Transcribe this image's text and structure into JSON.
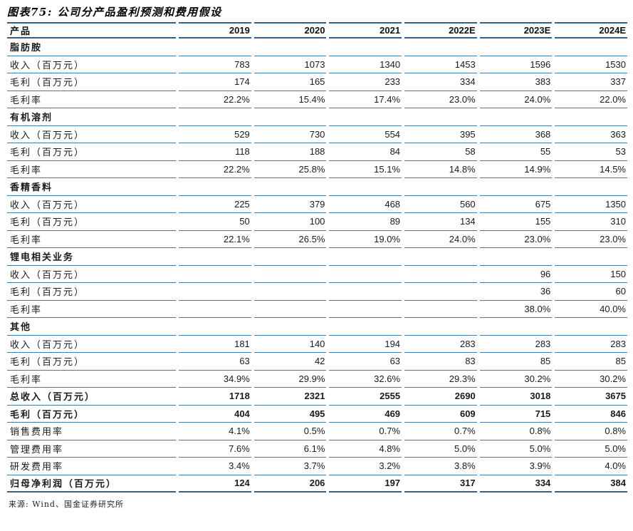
{
  "figure": {
    "title": "图表75: 公司分产品盈利预测和费用假设",
    "source": "来源: Wind、国金证券研究所"
  },
  "colors": {
    "rule_heavy": "#2e6187",
    "rule_light": "#4579a1",
    "text": "#1a1a1a"
  },
  "table": {
    "columns": [
      "产品",
      "2019",
      "2020",
      "2021",
      "2022E",
      "2023E",
      "2024E"
    ],
    "rows": [
      {
        "label": "脂肪胺",
        "style": "section",
        "values": [
          "",
          "",
          "",
          "",
          "",
          ""
        ]
      },
      {
        "label": "收入（百万元）",
        "style": "data",
        "values": [
          "783",
          "1073",
          "1340",
          "1453",
          "1596",
          "1530"
        ]
      },
      {
        "label": "毛利（百万元）",
        "style": "data",
        "values": [
          "174",
          "165",
          "233",
          "334",
          "383",
          "337"
        ]
      },
      {
        "label": "毛利率",
        "style": "data",
        "values": [
          "22.2%",
          "15.4%",
          "17.4%",
          "23.0%",
          "24.0%",
          "22.0%"
        ]
      },
      {
        "label": "有机溶剂",
        "style": "section",
        "values": [
          "",
          "",
          "",
          "",
          "",
          ""
        ]
      },
      {
        "label": "收入（百万元）",
        "style": "data",
        "values": [
          "529",
          "730",
          "554",
          "395",
          "368",
          "363"
        ]
      },
      {
        "label": "毛利（百万元）",
        "style": "data",
        "values": [
          "118",
          "188",
          "84",
          "58",
          "55",
          "53"
        ]
      },
      {
        "label": "毛利率",
        "style": "data",
        "values": [
          "22.2%",
          "25.8%",
          "15.1%",
          "14.8%",
          "14.9%",
          "14.5%"
        ]
      },
      {
        "label": "香精香料",
        "style": "section",
        "values": [
          "",
          "",
          "",
          "",
          "",
          ""
        ]
      },
      {
        "label": "收入（百万元）",
        "style": "data",
        "values": [
          "225",
          "379",
          "468",
          "560",
          "675",
          "1350"
        ]
      },
      {
        "label": "毛利（百万元）",
        "style": "data",
        "values": [
          "50",
          "100",
          "89",
          "134",
          "155",
          "310"
        ]
      },
      {
        "label": "毛利率",
        "style": "data",
        "values": [
          "22.1%",
          "26.5%",
          "19.0%",
          "24.0%",
          "23.0%",
          "23.0%"
        ]
      },
      {
        "label": "锂电相关业务",
        "style": "section",
        "values": [
          "",
          "",
          "",
          "",
          "",
          ""
        ]
      },
      {
        "label": "收入（百万元）",
        "style": "data",
        "values": [
          "",
          "",
          "",
          "",
          "96",
          "150"
        ]
      },
      {
        "label": "毛利（百万元）",
        "style": "data",
        "values": [
          "",
          "",
          "",
          "",
          "36",
          "60"
        ]
      },
      {
        "label": "毛利率",
        "style": "data",
        "values": [
          "",
          "",
          "",
          "",
          "38.0%",
          "40.0%"
        ]
      },
      {
        "label": "其他",
        "style": "section",
        "values": [
          "",
          "",
          "",
          "",
          "",
          ""
        ]
      },
      {
        "label": "收入（百万元）",
        "style": "data",
        "values": [
          "181",
          "140",
          "194",
          "283",
          "283",
          "283"
        ]
      },
      {
        "label": "毛利（百万元）",
        "style": "data",
        "values": [
          "63",
          "42",
          "63",
          "83",
          "85",
          "85"
        ]
      },
      {
        "label": "毛利率",
        "style": "data",
        "values": [
          "34.9%",
          "29.9%",
          "32.6%",
          "29.3%",
          "30.2%",
          "30.2%"
        ]
      },
      {
        "label": "总收入（百万元）",
        "style": "bold",
        "values": [
          "1718",
          "2321",
          "2555",
          "2690",
          "3018",
          "3675"
        ]
      },
      {
        "label": "毛利（百万元）",
        "style": "bold",
        "values": [
          "404",
          "495",
          "469",
          "609",
          "715",
          "846"
        ]
      },
      {
        "label": "销售费用率",
        "style": "data",
        "values": [
          "4.1%",
          "0.5%",
          "0.7%",
          "0.7%",
          "0.8%",
          "0.8%"
        ]
      },
      {
        "label": "管理费用率",
        "style": "data",
        "values": [
          "7.6%",
          "6.1%",
          "4.8%",
          "5.0%",
          "5.0%",
          "5.0%"
        ]
      },
      {
        "label": "研发费用率",
        "style": "data",
        "values": [
          "3.4%",
          "3.7%",
          "3.2%",
          "3.8%",
          "3.9%",
          "4.0%"
        ]
      },
      {
        "label": "归母净利润（百万元）",
        "style": "bold",
        "values": [
          "124",
          "206",
          "197",
          "317",
          "334",
          "384"
        ]
      }
    ]
  }
}
